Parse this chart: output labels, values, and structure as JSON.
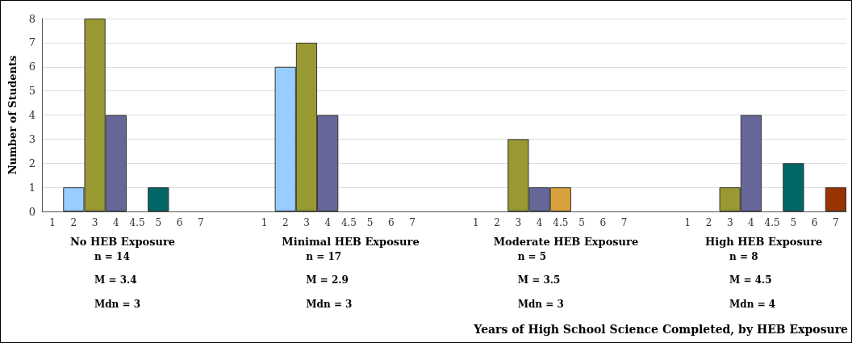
{
  "chart_data": {
    "type": "bar",
    "ylabel": "Number of Students",
    "categories": [
      "1",
      "2",
      "3",
      "4",
      "4.5",
      "5",
      "6",
      "7",
      null,
      null,
      "1",
      "2",
      "3",
      "4",
      "4.5",
      "5",
      "6",
      "7",
      null,
      null,
      "1",
      "2",
      "3",
      "4",
      "4.5",
      "5",
      "6",
      "7",
      null,
      null,
      "1",
      "2",
      "3",
      "4",
      "4.5",
      "5",
      "6",
      "7"
    ],
    "values": [
      0,
      1,
      8,
      4,
      0,
      1,
      0,
      0,
      null,
      null,
      0,
      6,
      7,
      4,
      0,
      0,
      0,
      0,
      null,
      null,
      0,
      0,
      3,
      1,
      1,
      0,
      0,
      0,
      null,
      null,
      0,
      0,
      1,
      4,
      0,
      2,
      0,
      1
    ],
    "colors": [
      "#99ccff",
      "#99ccff",
      "#999933",
      "#666699",
      "#d9a13b",
      "#006666",
      "#006666",
      "#993300",
      null,
      null,
      "#99ccff",
      "#99ccff",
      "#999933",
      "#666699",
      "#d9a13b",
      "#006666",
      "#006666",
      "#993300",
      null,
      null,
      "#99ccff",
      "#99ccff",
      "#999933",
      "#666699",
      "#d9a13b",
      "#006666",
      "#006666",
      "#993300",
      null,
      null,
      "#99ccff",
      "#99ccff",
      "#999933",
      "#666699",
      "#d9a13b",
      "#006666",
      "#006666",
      "#993300"
    ],
    "ylim": [
      0,
      8
    ],
    "yticks": [
      0,
      1,
      2,
      3,
      4,
      5,
      6,
      7,
      8
    ],
    "grid": "y",
    "annotations": [
      "No HEB Exposure",
      "n = 14",
      "M = 3.4",
      "Mdn = 3",
      "Minimal HEB Exposure",
      "n = 17",
      "M = 2.9",
      "Mdn = 3",
      "Moderate HEB Exposure",
      "n = 5",
      "M = 3.5",
      "Mdn = 3",
      "High HEB Exposure",
      "n = 8",
      "M = 4.5",
      "Mdn = 4",
      "Years of High School Science Completed, by HEB Exposure"
    ]
  }
}
